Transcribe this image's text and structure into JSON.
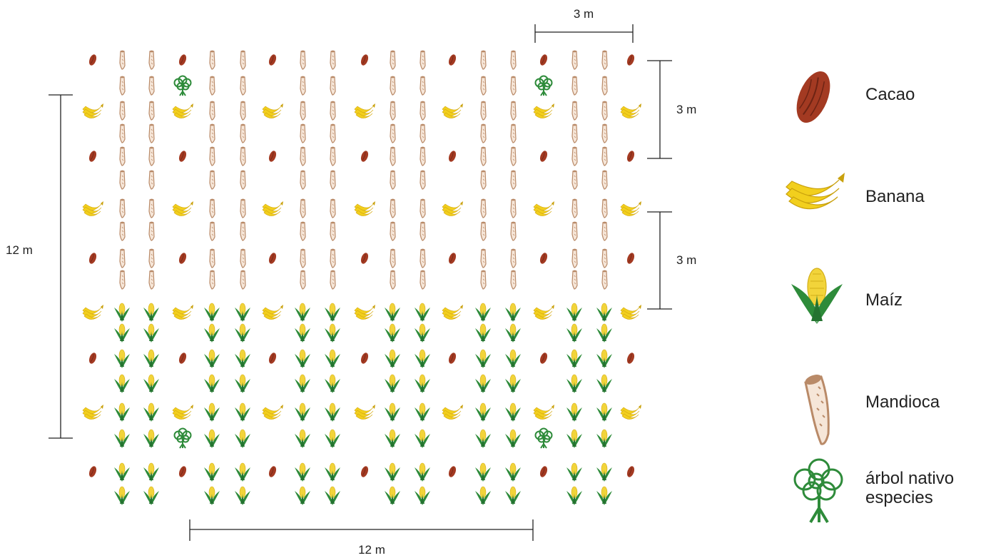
{
  "dimensions": {
    "top_width": "3 m",
    "right_top_height": "3 m",
    "right_mid_height": "3 m",
    "left_height": "12 m",
    "bottom_width": "12 m"
  },
  "legend": [
    {
      "key": "cacao",
      "label": "Cacao"
    },
    {
      "key": "banana",
      "label": "Banana"
    },
    {
      "key": "maiz",
      "label": "Maíz"
    },
    {
      "key": "mandioca",
      "label": "Mandioca"
    },
    {
      "key": "tree",
      "label": "árbol nativo especies"
    }
  ],
  "colors": {
    "cacao": "#a33a22",
    "banana": "#f2cf1d",
    "maiz_leaf": "#2e8b3a",
    "maiz_cob": "#f2d43a",
    "mandioca": "#b98a68",
    "mandioca_fill": "#f6e6d8",
    "tree": "#2e8b3a",
    "line": "#222222"
  },
  "icons": {
    "cacao": "cacao-pod-icon",
    "banana": "banana-bunch-icon",
    "maiz": "corn-icon",
    "mandioca": "cassava-root-icon",
    "tree": "native-tree-icon"
  }
}
